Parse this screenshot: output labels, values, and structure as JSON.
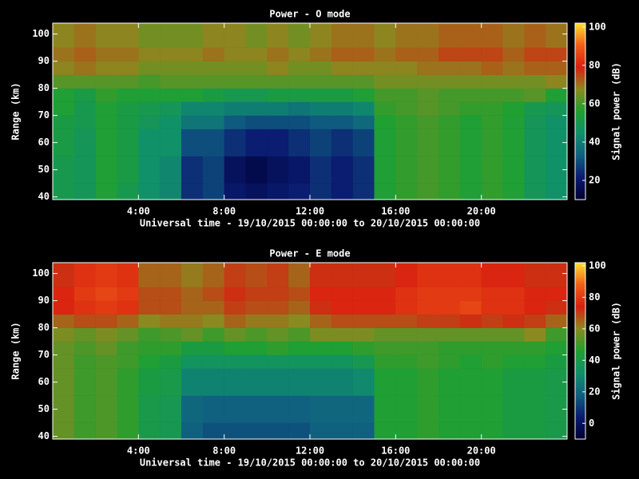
{
  "chart_data": [
    {
      "type": "heatmap",
      "title": "Power - O mode",
      "xlabel": "Universal time - 19/10/2015 00:00:00 to 20/10/2015 00:00:00",
      "ylabel": "Range (km)",
      "colorbar_label": "Signal power (dB)",
      "x": [
        0,
        1,
        2,
        3,
        4,
        5,
        6,
        7,
        8,
        9,
        10,
        11,
        12,
        13,
        14,
        15,
        16,
        17,
        18,
        19,
        20,
        21,
        22,
        23,
        24
      ],
      "y": [
        39,
        45,
        55,
        65,
        70,
        75,
        80,
        85,
        90,
        95,
        104
      ],
      "xlim": [
        0,
        24
      ],
      "ylim": [
        39,
        104
      ],
      "xticks": [
        {
          "value": 4,
          "label": "4:00"
        },
        {
          "value": 8,
          "label": "8:00"
        },
        {
          "value": 12,
          "label": "12:00"
        },
        {
          "value": 16,
          "label": "16:00"
        },
        {
          "value": 20,
          "label": "20:00"
        }
      ],
      "yticks": [
        40,
        50,
        60,
        70,
        80,
        90,
        100
      ],
      "clim": [
        10,
        102
      ],
      "cticks": [
        20,
        40,
        60,
        80,
        100
      ],
      "colormap": [
        "#000030",
        "#0a1a70",
        "#106080",
        "#10906a",
        "#20a030",
        "#8a8a20",
        "#d82010",
        "#f06018",
        "#ffe030"
      ],
      "z": [
        [
          50,
          48,
          55,
          50,
          45,
          42,
          25,
          28,
          20,
          18,
          20,
          22,
          25,
          22,
          25,
          55,
          58,
          60,
          58,
          55,
          58,
          55,
          48,
          45
        ],
        [
          50,
          48,
          55,
          52,
          45,
          42,
          25,
          28,
          18,
          15,
          18,
          20,
          25,
          22,
          25,
          55,
          58,
          60,
          58,
          55,
          58,
          55,
          48,
          45
        ],
        [
          52,
          48,
          55,
          52,
          45,
          45,
          30,
          30,
          25,
          22,
          22,
          25,
          28,
          25,
          28,
          55,
          58,
          60,
          58,
          55,
          58,
          55,
          48,
          45
        ],
        [
          52,
          50,
          55,
          52,
          48,
          45,
          38,
          38,
          32,
          30,
          30,
          30,
          32,
          32,
          35,
          56,
          58,
          60,
          58,
          55,
          58,
          55,
          48,
          45
        ],
        [
          55,
          50,
          55,
          52,
          50,
          48,
          42,
          42,
          40,
          40,
          40,
          38,
          40,
          40,
          42,
          58,
          60,
          62,
          60,
          58,
          58,
          56,
          50,
          48
        ],
        [
          55,
          52,
          58,
          55,
          55,
          55,
          55,
          52,
          50,
          50,
          52,
          52,
          52,
          52,
          55,
          60,
          60,
          62,
          60,
          60,
          60,
          60,
          62,
          55
        ],
        [
          62,
          62,
          62,
          62,
          60,
          62,
          62,
          62,
          62,
          62,
          62,
          62,
          62,
          62,
          62,
          65,
          65,
          65,
          65,
          65,
          65,
          65,
          65,
          68
        ],
        [
          68,
          70,
          68,
          68,
          65,
          65,
          65,
          65,
          65,
          65,
          68,
          65,
          65,
          68,
          68,
          68,
          68,
          70,
          70,
          70,
          72,
          70,
          72,
          72
        ],
        [
          70,
          72,
          70,
          70,
          68,
          68,
          68,
          70,
          68,
          68,
          70,
          68,
          70,
          72,
          72,
          70,
          72,
          72,
          75,
          75,
          75,
          72,
          75,
          75
        ],
        [
          68,
          70,
          68,
          68,
          65,
          65,
          65,
          68,
          68,
          65,
          68,
          65,
          68,
          70,
          70,
          68,
          70,
          70,
          72,
          72,
          72,
          70,
          72,
          70
        ]
      ]
    },
    {
      "type": "heatmap",
      "title": "Power - E mode",
      "xlabel": "Universal time - 19/10/2015 00:00:00 to 20/10/2015 00:00:00",
      "ylabel": "Range (km)",
      "colorbar_label": "Signal power (dB)",
      "x": [
        0,
        1,
        2,
        3,
        4,
        5,
        6,
        7,
        8,
        9,
        10,
        11,
        12,
        13,
        14,
        15,
        16,
        17,
        18,
        19,
        20,
        21,
        22,
        23,
        24
      ],
      "y": [
        39,
        45,
        55,
        65,
        70,
        75,
        80,
        85,
        90,
        95,
        104
      ],
      "xlim": [
        0,
        24
      ],
      "ylim": [
        39,
        104
      ],
      "xticks": [
        {
          "value": 4,
          "label": "4:00"
        },
        {
          "value": 8,
          "label": "8:00"
        },
        {
          "value": 12,
          "label": "12:00"
        },
        {
          "value": 16,
          "label": "16:00"
        },
        {
          "value": 20,
          "label": "20:00"
        }
      ],
      "yticks": [
        40,
        50,
        60,
        70,
        80,
        90,
        100
      ],
      "clim": [
        -10,
        102
      ],
      "cticks": [
        0,
        20,
        40,
        60,
        80,
        100
      ],
      "colormap": [
        "#000030",
        "#0a1a70",
        "#106080",
        "#10906a",
        "#20a030",
        "#8a8a20",
        "#d82010",
        "#f06018",
        "#ffe030"
      ],
      "z": [
        [
          55,
          50,
          52,
          48,
          40,
          38,
          18,
          15,
          15,
          15,
          15,
          15,
          18,
          18,
          18,
          45,
          45,
          48,
          45,
          45,
          45,
          42,
          42,
          40
        ],
        [
          55,
          50,
          52,
          48,
          40,
          38,
          20,
          18,
          18,
          18,
          18,
          18,
          20,
          20,
          20,
          45,
          45,
          48,
          45,
          45,
          45,
          42,
          42,
          40
        ],
        [
          55,
          50,
          52,
          48,
          42,
          40,
          28,
          28,
          28,
          28,
          28,
          28,
          28,
          28,
          30,
          45,
          45,
          48,
          45,
          45,
          45,
          42,
          42,
          40
        ],
        [
          55,
          50,
          52,
          50,
          45,
          42,
          35,
          35,
          35,
          35,
          35,
          35,
          35,
          35,
          38,
          48,
          48,
          50,
          48,
          45,
          48,
          45,
          45,
          42
        ],
        [
          55,
          52,
          55,
          50,
          48,
          48,
          42,
          42,
          45,
          45,
          48,
          45,
          45,
          45,
          48,
          50,
          50,
          50,
          48,
          48,
          48,
          48,
          48,
          45
        ],
        [
          58,
          55,
          58,
          55,
          50,
          52,
          55,
          50,
          55,
          52,
          55,
          52,
          58,
          58,
          58,
          55,
          55,
          55,
          55,
          55,
          55,
          55,
          60,
          50
        ],
        [
          65,
          68,
          68,
          65,
          60,
          62,
          62,
          60,
          65,
          62,
          62,
          60,
          65,
          68,
          68,
          68,
          68,
          70,
          70,
          72,
          70,
          72,
          70,
          65
        ],
        [
          75,
          78,
          80,
          78,
          68,
          68,
          65,
          65,
          70,
          68,
          68,
          65,
          72,
          75,
          75,
          75,
          78,
          80,
          80,
          82,
          78,
          78,
          75,
          72
        ],
        [
          75,
          80,
          82,
          80,
          68,
          68,
          65,
          68,
          72,
          70,
          70,
          68,
          75,
          75,
          75,
          75,
          78,
          80,
          80,
          80,
          78,
          78,
          75,
          75
        ],
        [
          72,
          78,
          80,
          78,
          65,
          65,
          62,
          65,
          70,
          68,
          70,
          65,
          72,
          72,
          72,
          72,
          75,
          78,
          78,
          78,
          75,
          75,
          72,
          72
        ]
      ]
    }
  ]
}
